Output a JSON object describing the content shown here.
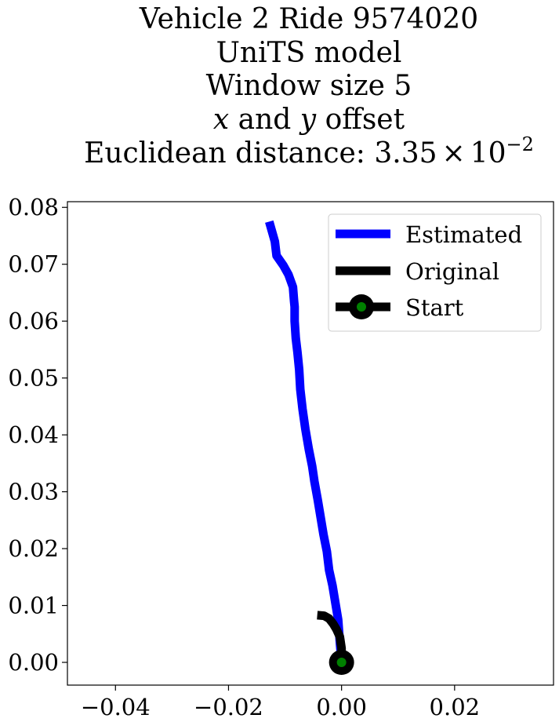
{
  "chart_data": {
    "type": "line",
    "title_lines": [
      "Vehicle 2 Ride 9574020",
      "UniTS model",
      "Window size 5",
      "x and y offset",
      "Euclidean distance: 3.35 × 10⁻²"
    ],
    "title_parts": {
      "offset_x": "x",
      "offset_and": " and ",
      "offset_y": "y",
      "offset_rest": " offset",
      "distance_prefix": "Euclidean distance: ",
      "distance_mantissa": "3.35",
      "distance_times": "×",
      "distance_base": "10",
      "distance_exp": "−2"
    },
    "xlabel": "",
    "ylabel": "",
    "xlim": [
      -0.0485,
      0.0375
    ],
    "ylim": [
      -0.004,
      0.081
    ],
    "x_ticks": [
      -0.04,
      -0.02,
      0.0,
      0.02
    ],
    "x_tick_labels": [
      "−0.04",
      "−0.02",
      "0.00",
      "0.02"
    ],
    "y_ticks": [
      0.0,
      0.01,
      0.02,
      0.03,
      0.04,
      0.05,
      0.06,
      0.07,
      0.08
    ],
    "y_tick_labels": [
      "0.00",
      "0.01",
      "0.02",
      "0.03",
      "0.04",
      "0.05",
      "0.06",
      "0.07",
      "0.08"
    ],
    "grid": false,
    "legend_position": "upper right",
    "series": [
      {
        "name": "Estimated",
        "color": "#0000ff",
        "x": [
          0.0,
          -0.0003,
          -0.0006,
          -0.0011,
          -0.0016,
          -0.0022,
          -0.0026,
          -0.0032,
          -0.0037,
          -0.0042,
          -0.0048,
          -0.0052,
          -0.0058,
          -0.0064,
          -0.0069,
          -0.0073,
          -0.0075,
          -0.0078,
          -0.0081,
          -0.0083,
          -0.0083,
          -0.0084,
          -0.0086,
          -0.0094,
          -0.0103,
          -0.0115,
          -0.0118,
          -0.0128
        ],
        "y": [
          0.0,
          0.0035,
          0.0075,
          0.0105,
          0.0135,
          0.0162,
          0.0195,
          0.0225,
          0.0255,
          0.0285,
          0.0318,
          0.0345,
          0.0375,
          0.041,
          0.0445,
          0.048,
          0.0515,
          0.0545,
          0.057,
          0.06,
          0.0625,
          0.0635,
          0.066,
          0.0682,
          0.0698,
          0.0715,
          0.074,
          0.0775
        ]
      },
      {
        "name": "Original",
        "color": "#000000",
        "x": [
          0.0,
          0.0,
          -0.0003,
          -0.0009,
          -0.0015,
          -0.0022,
          -0.0031,
          -0.0043
        ],
        "y": [
          0.0,
          0.0025,
          0.0045,
          0.0058,
          0.0068,
          0.0077,
          0.0082,
          0.0083
        ]
      }
    ],
    "start_point": {
      "name": "Start",
      "x": 0.0,
      "y": 0.0,
      "outer_color": "#000000",
      "inner_color": "#008000"
    },
    "legend": [
      {
        "label": "Estimated",
        "color": "#0000ff",
        "marker": false
      },
      {
        "label": "Original",
        "color": "#000000",
        "marker": false
      },
      {
        "label": "Start",
        "color": "#000000",
        "marker": true,
        "marker_inner": "#008000"
      }
    ]
  }
}
